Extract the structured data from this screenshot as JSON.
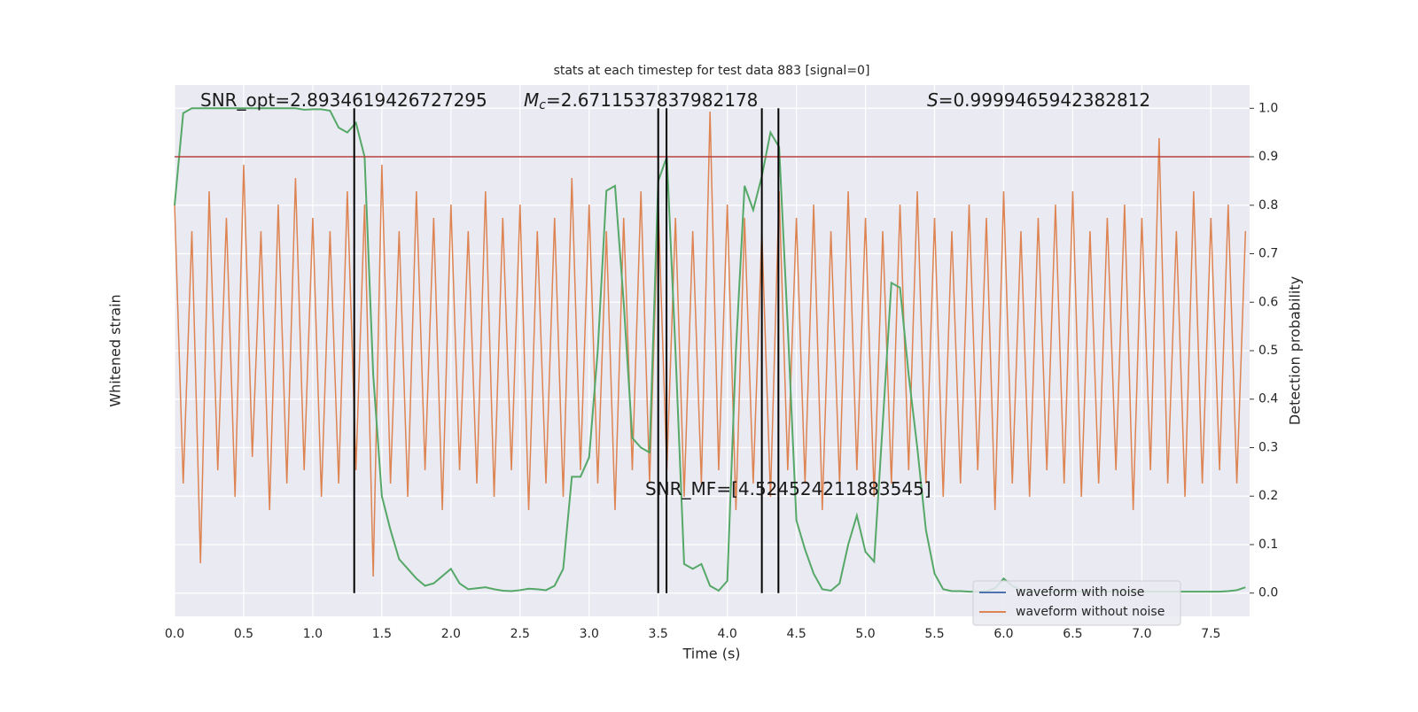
{
  "chart_data": {
    "type": "line",
    "title": "stats at each timestep for test data 883 [signal=0]",
    "xlabel": "Time (s)",
    "ylabel": "Whitened strain",
    "y2label": "Detection probability",
    "xlim": [
      0,
      7.78
    ],
    "xticks": [
      {
        "value": 0,
        "label": "0.0"
      },
      0.5,
      {
        "value": 1,
        "label": "1.0"
      },
      1.5,
      {
        "value": 2,
        "label": "2.0"
      },
      2.5,
      {
        "value": 3,
        "label": "3.0"
      },
      3.5,
      {
        "value": 4,
        "label": "4.0"
      },
      4.5,
      {
        "value": 5,
        "label": "5.0"
      },
      5.5,
      {
        "value": 6,
        "label": "6.0"
      },
      6.5,
      {
        "value": 7,
        "label": "7.0"
      },
      7.5
    ],
    "ylim": [
      -1,
      1
    ],
    "y2lim": [
      -0.048,
      1.048
    ],
    "y2ticks": [
      {
        "value": 0,
        "label": "0.0"
      },
      0.1,
      0.2,
      0.3,
      0.4,
      0.5,
      0.6,
      0.7,
      0.8,
      0.9,
      {
        "value": 1,
        "label": "1.0"
      }
    ],
    "grid": true,
    "x": [
      0,
      0.0625,
      0.125,
      0.1875,
      0.25,
      0.3125,
      0.375,
      0.4375,
      0.5,
      0.5625,
      0.625,
      0.6875,
      0.75,
      0.8125,
      0.875,
      0.9375,
      1,
      1.0625,
      1.125,
      1.1875,
      1.25,
      1.3125,
      1.375,
      1.4375,
      1.5,
      1.5625,
      1.625,
      1.6875,
      1.75,
      1.8125,
      1.875,
      1.9375,
      2,
      2.0625,
      2.125,
      2.1875,
      2.25,
      2.3125,
      2.375,
      2.4375,
      2.5,
      2.5625,
      2.625,
      2.6875,
      2.75,
      2.8125,
      2.875,
      2.9375,
      3,
      3.0625,
      3.125,
      3.1875,
      3.25,
      3.3125,
      3.375,
      3.4375,
      3.5,
      3.5625,
      3.625,
      3.6875,
      3.75,
      3.8125,
      3.875,
      3.9375,
      4,
      4.0625,
      4.125,
      4.1875,
      4.25,
      4.3125,
      4.375,
      4.4375,
      4.5,
      4.5625,
      4.625,
      4.6875,
      4.75,
      4.8125,
      4.875,
      4.9375,
      5,
      5.0625,
      5.125,
      5.1875,
      5.25,
      5.3125,
      5.375,
      5.4375,
      5.5,
      5.5625,
      5.625,
      5.6875,
      5.75,
      5.8125,
      5.875,
      5.9375,
      6,
      6.0625,
      6.125,
      6.1875,
      6.25,
      6.3125,
      6.375,
      6.4375,
      6.5,
      6.5625,
      6.625,
      6.6875,
      6.75,
      6.8125,
      6.875,
      6.9375,
      7,
      7.0625,
      7.125,
      7.1875,
      7.25,
      7.3125,
      7.375,
      7.4375,
      7.5,
      7.5625,
      7.625,
      7.6875,
      7.75
    ],
    "series": [
      {
        "name": "waveform without noise",
        "color": "#dd8452",
        "values": [
          0.55,
          -0.5,
          0.45,
          -0.8,
          0.6,
          -0.45,
          0.5,
          -0.55,
          0.7,
          -0.4,
          0.45,
          -0.6,
          0.55,
          -0.5,
          0.65,
          -0.45,
          0.5,
          -0.55,
          0.45,
          -0.5,
          0.6,
          -0.45,
          0.55,
          -0.85,
          0.7,
          -0.5,
          0.45,
          -0.55,
          0.6,
          -0.45,
          0.5,
          -0.6,
          0.55,
          -0.45,
          0.45,
          -0.5,
          0.6,
          -0.55,
          0.5,
          -0.45,
          0.55,
          -0.6,
          0.45,
          -0.5,
          0.5,
          -0.55,
          0.65,
          -0.45,
          0.55,
          -0.5,
          0.45,
          -0.6,
          0.5,
          -0.45,
          0.6,
          -0.5,
          0.55,
          -0.45,
          0.5,
          -0.55,
          0.45,
          -0.5,
          0.9,
          -0.45,
          0.55,
          -0.6,
          0.5,
          -0.5,
          0.45,
          -0.55,
          0.6,
          -0.45,
          0.5,
          -0.5,
          0.55,
          -0.6,
          0.45,
          -0.5,
          0.6,
          -0.45,
          0.5,
          -0.55,
          0.45,
          -0.5,
          0.55,
          -0.45,
          0.6,
          -0.5,
          0.5,
          -0.55,
          0.45,
          -0.5,
          0.55,
          -0.45,
          0.5,
          -0.6,
          0.6,
          -0.5,
          0.45,
          -0.55,
          0.5,
          -0.45,
          0.55,
          -0.5,
          0.6,
          -0.55,
          0.45,
          -0.5,
          0.5,
          -0.45,
          0.55,
          -0.6,
          0.5,
          -0.45,
          0.8,
          -0.5,
          0.45,
          -0.55,
          0.6,
          -0.5,
          0.5,
          -0.45,
          0.55,
          -0.5,
          0.45
        ]
      },
      {
        "color": "#55a868",
        "axis": "y2",
        "values": [
          0.8,
          0.99,
          1.0,
          1.0,
          1.0,
          1.0,
          1.0,
          1.0,
          1.0,
          1.0,
          1.0,
          1.0,
          1.0,
          1.0,
          1.0,
          0.997,
          0.998,
          0.998,
          0.995,
          0.96,
          0.95,
          0.97,
          0.9,
          0.45,
          0.2,
          0.13,
          0.07,
          0.05,
          0.03,
          0.015,
          0.02,
          0.035,
          0.05,
          0.02,
          0.008,
          0.01,
          0.012,
          0.008,
          0.005,
          0.004,
          0.006,
          0.009,
          0.008,
          0.006,
          0.015,
          0.05,
          0.24,
          0.24,
          0.28,
          0.5,
          0.83,
          0.84,
          0.6,
          0.32,
          0.3,
          0.29,
          0.85,
          0.9,
          0.5,
          0.06,
          0.05,
          0.06,
          0.015,
          0.005,
          0.025,
          0.5,
          0.84,
          0.79,
          0.86,
          0.95,
          0.92,
          0.55,
          0.15,
          0.09,
          0.04,
          0.008,
          0.005,
          0.02,
          0.1,
          0.16,
          0.085,
          0.065,
          0.35,
          0.64,
          0.63,
          0.45,
          0.3,
          0.13,
          0.04,
          0.008,
          0.004,
          0.004,
          0.003,
          0.003,
          0.004,
          0.01,
          0.03,
          0.015,
          0.006,
          0.004,
          0.003,
          0.003,
          0.003,
          0.003,
          0.003,
          0.003,
          0.003,
          0.003,
          0.003,
          0.003,
          0.003,
          0.003,
          0.003,
          0.003,
          0.003,
          0.003,
          0.003,
          0.003,
          0.003,
          0.003,
          0.003,
          0.003,
          0.004,
          0.006,
          0.012
        ]
      }
    ],
    "threshold": {
      "value": 0.9,
      "color": "#b5403f"
    },
    "vlines": {
      "x": [
        1.3,
        3.5,
        3.56,
        4.25,
        4.37
      ],
      "ymin": 0,
      "ymax": 1,
      "color": "#000000"
    },
    "legend": {
      "position": "lower right",
      "entries": [
        {
          "name": "waveform with noise",
          "color": "#4c72b0"
        },
        {
          "name": "waveform without noise",
          "color": "#dd8452"
        }
      ]
    },
    "annotations": [
      {
        "text": "SNR_opt=2.8934619426727295"
      },
      {
        "symbol": "M",
        "subscript": "c",
        "text": "=2.6711537837982178"
      },
      {
        "symbol": "S",
        "text": "=0.9999465942382812"
      },
      {
        "text": "SNR_MF=[4.524524211883545]"
      }
    ]
  }
}
